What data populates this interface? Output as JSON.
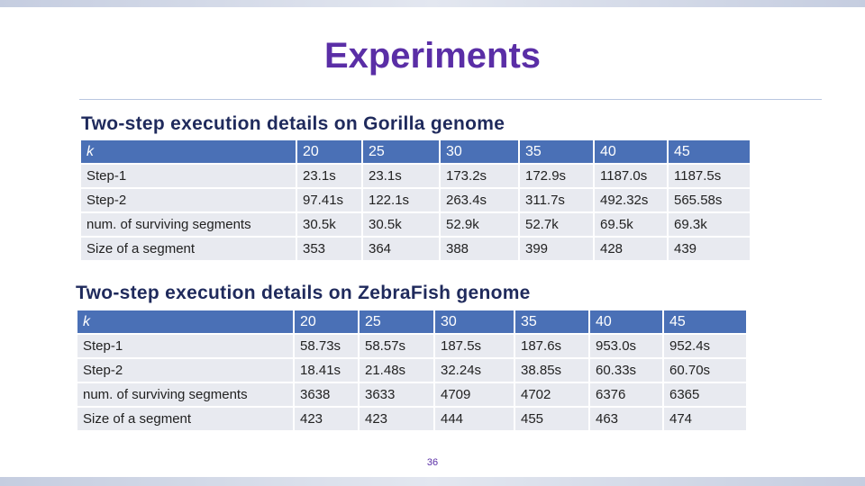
{
  "title": "Experiments",
  "tables": [
    {
      "heading": "Two-step execution details on Gorilla genome",
      "header": [
        "k",
        "20",
        "25",
        "30",
        "35",
        "40",
        "45"
      ],
      "rows": [
        [
          "Step-1",
          "23.1s",
          "23.1s",
          "173.2s",
          "172.9s",
          "1187.0s",
          "1187.5s"
        ],
        [
          "Step-2",
          "97.41s",
          "122.1s",
          "263.4s",
          "311.7s",
          "492.32s",
          "565.58s"
        ],
        [
          "num. of surviving segments",
          "30.5k",
          "30.5k",
          "52.9k",
          "52.7k",
          "69.5k",
          "69.3k"
        ],
        [
          "Size of a segment",
          "353",
          "364",
          "388",
          "399",
          "428",
          "439"
        ]
      ]
    },
    {
      "heading": "Two-step execution details on ZebraFish genome",
      "header": [
        "k",
        "20",
        "25",
        "30",
        "35",
        "40",
        "45"
      ],
      "rows": [
        [
          "Step-1",
          "58.73s",
          "58.57s",
          "187.5s",
          "187.6s",
          "953.0s",
          "952.4s"
        ],
        [
          "Step-2",
          "18.41s",
          "21.48s",
          "32.24s",
          "38.85s",
          "60.33s",
          "60.70s"
        ],
        [
          "num. of surviving segments",
          "3638",
          "3633",
          "4709",
          "4702",
          "6376",
          "6365"
        ],
        [
          "Size of a segment",
          "423",
          "423",
          "444",
          "455",
          "463",
          "474"
        ]
      ]
    }
  ],
  "page_number": "36"
}
